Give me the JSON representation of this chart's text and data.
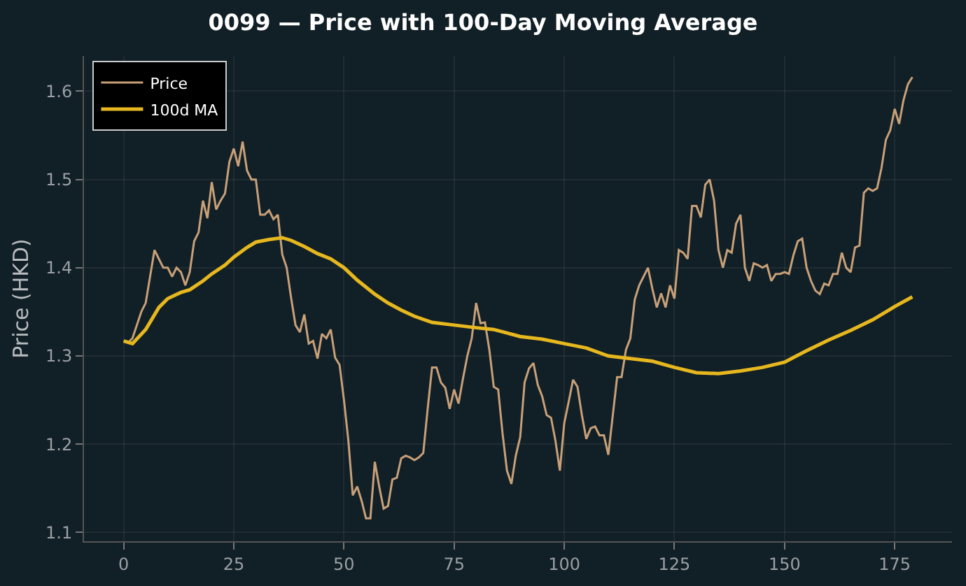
{
  "chart_data": {
    "type": "line",
    "title": "0099 — Price with 100-Day Moving Average",
    "ylabel": "Price (HKD)",
    "xlim": [
      -9,
      188
    ],
    "ylim": [
      1.09,
      1.64
    ],
    "xticks": [
      0,
      25,
      50,
      75,
      100,
      125,
      150,
      175
    ],
    "yticks": [
      {
        "value": 1.1,
        "label": "1.1"
      },
      {
        "value": 1.2,
        "label": "1.2"
      },
      {
        "value": 1.3,
        "label": "1.3"
      },
      {
        "value": 1.4,
        "label": "1.4"
      },
      {
        "value": 1.5,
        "label": "1.5"
      },
      {
        "value": 1.6,
        "label": "1.6"
      }
    ],
    "grid": true,
    "legend": "top left",
    "marker": "none",
    "line_style": "solid",
    "series": [
      {
        "name": "Price",
        "color": "#c8a078",
        "x": [
          0,
          1,
          2,
          3,
          4,
          5,
          6,
          7,
          8,
          9,
          10,
          11,
          12,
          13,
          14,
          15,
          16,
          17,
          18,
          19,
          20,
          21,
          22,
          23,
          24,
          25,
          26,
          27,
          28,
          29,
          30,
          31,
          32,
          33,
          34,
          35,
          36,
          37,
          38,
          39,
          40,
          41,
          42,
          43,
          44,
          45,
          46,
          47,
          48,
          49,
          50,
          51,
          52,
          53,
          54,
          55,
          56,
          57,
          58,
          59,
          60,
          61,
          62,
          63,
          64,
          65,
          66,
          67,
          68,
          69,
          70,
          71,
          72,
          73,
          74,
          75,
          76,
          77,
          78,
          79,
          80,
          81,
          82,
          83,
          84,
          85,
          86,
          87,
          88,
          89,
          90,
          91,
          92,
          93,
          94,
          95,
          96,
          97,
          98,
          99,
          100,
          101,
          102,
          103,
          104,
          105,
          106,
          107,
          108,
          109,
          110,
          111,
          112,
          113,
          114,
          115,
          116,
          117,
          118,
          119,
          120,
          121,
          122,
          123,
          124,
          125,
          126,
          127,
          128,
          129,
          130,
          131,
          132,
          133,
          134,
          135,
          136,
          137,
          138,
          139,
          140,
          141,
          142,
          143,
          144,
          145,
          146,
          147,
          148,
          149,
          150,
          151,
          152,
          153,
          154,
          155,
          156,
          157,
          158,
          159,
          160,
          161,
          162,
          163,
          164,
          165,
          166,
          167,
          168,
          169,
          170,
          171,
          172,
          173,
          174,
          175,
          176,
          177,
          178,
          179
        ],
        "values": [
          1.317,
          1.315,
          1.32,
          1.335,
          1.35,
          1.36,
          1.39,
          1.42,
          1.41,
          1.4,
          1.4,
          1.39,
          1.4,
          1.395,
          1.38,
          1.395,
          1.43,
          1.44,
          1.476,
          1.456,
          1.497,
          1.466,
          1.476,
          1.484,
          1.52,
          1.535,
          1.515,
          1.543,
          1.51,
          1.5,
          1.5,
          1.46,
          1.46,
          1.465,
          1.455,
          1.46,
          1.415,
          1.4,
          1.366,
          1.335,
          1.327,
          1.347,
          1.314,
          1.317,
          1.297,
          1.325,
          1.32,
          1.33,
          1.298,
          1.29,
          1.25,
          1.204,
          1.142,
          1.152,
          1.136,
          1.116,
          1.116,
          1.18,
          1.152,
          1.127,
          1.13,
          1.16,
          1.162,
          1.184,
          1.187,
          1.185,
          1.182,
          1.185,
          1.19,
          1.24,
          1.287,
          1.287,
          1.27,
          1.264,
          1.24,
          1.262,
          1.246,
          1.274,
          1.3,
          1.32,
          1.36,
          1.337,
          1.338,
          1.307,
          1.265,
          1.262,
          1.212,
          1.17,
          1.155,
          1.187,
          1.208,
          1.27,
          1.286,
          1.292,
          1.267,
          1.254,
          1.233,
          1.23,
          1.204,
          1.17,
          1.224,
          1.248,
          1.273,
          1.265,
          1.233,
          1.206,
          1.218,
          1.22,
          1.21,
          1.21,
          1.188,
          1.232,
          1.276,
          1.276,
          1.307,
          1.32,
          1.364,
          1.38,
          1.39,
          1.4,
          1.376,
          1.355,
          1.371,
          1.355,
          1.38,
          1.365,
          1.42,
          1.417,
          1.41,
          1.47,
          1.47,
          1.457,
          1.494,
          1.5,
          1.476,
          1.42,
          1.4,
          1.42,
          1.417,
          1.45,
          1.46,
          1.4,
          1.385,
          1.405,
          1.403,
          1.4,
          1.403,
          1.385,
          1.393,
          1.393,
          1.395,
          1.393,
          1.414,
          1.43,
          1.433,
          1.4,
          1.385,
          1.374,
          1.37,
          1.382,
          1.38,
          1.393,
          1.393,
          1.417,
          1.4,
          1.395,
          1.423,
          1.425,
          1.485,
          1.49,
          1.487,
          1.49,
          1.513,
          1.545,
          1.556,
          1.58,
          1.563,
          1.59,
          1.608,
          1.616
        ]
      },
      {
        "name": "100d MA",
        "color": "#e6b71e",
        "x": [
          0,
          2,
          5,
          8,
          10,
          13,
          15,
          18,
          20,
          23,
          25,
          28,
          30,
          33,
          36,
          38,
          41,
          44,
          47,
          50,
          53,
          57,
          60,
          63,
          66,
          70,
          75,
          80,
          84,
          90,
          95,
          100,
          105,
          110,
          115,
          120,
          125,
          130,
          135,
          140,
          145,
          150,
          155,
          160,
          165,
          170,
          175,
          179
        ],
        "values": [
          1.317,
          1.314,
          1.33,
          1.355,
          1.365,
          1.372,
          1.375,
          1.385,
          1.393,
          1.403,
          1.412,
          1.423,
          1.429,
          1.432,
          1.434,
          1.431,
          1.424,
          1.416,
          1.41,
          1.4,
          1.386,
          1.37,
          1.36,
          1.352,
          1.345,
          1.338,
          1.335,
          1.332,
          1.33,
          1.322,
          1.319,
          1.314,
          1.309,
          1.3,
          1.297,
          1.294,
          1.287,
          1.281,
          1.28,
          1.283,
          1.287,
          1.293,
          1.306,
          1.318,
          1.329,
          1.341,
          1.356,
          1.367
        ]
      }
    ]
  }
}
